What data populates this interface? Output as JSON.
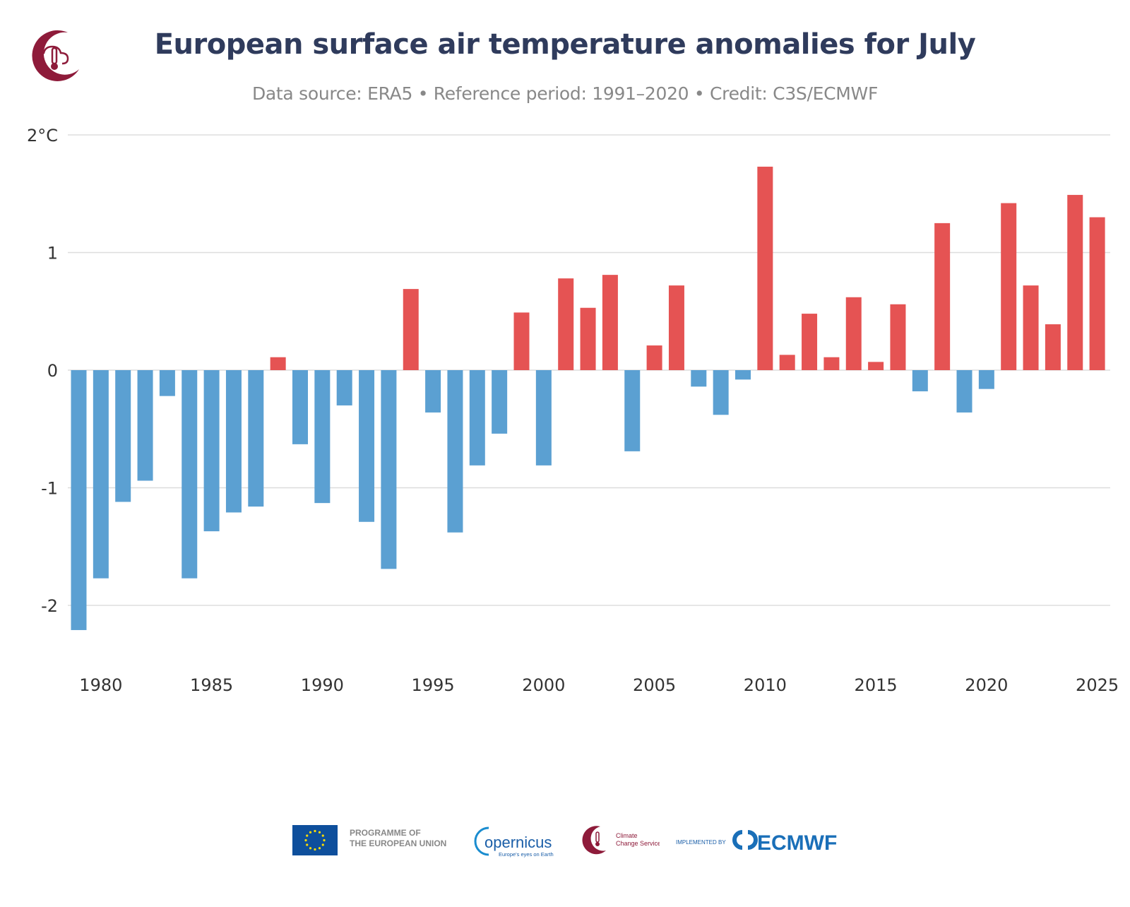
{
  "chart_data": {
    "type": "bar",
    "title": "European surface air temperature anomalies for July",
    "subtitle": "Data source: ERA5 • Reference period: 1991–2020 • Credit: C3S/ECMWF",
    "xlabel": "",
    "ylabel": "",
    "ylim": [
      -2.4,
      2.0
    ],
    "grid": true,
    "legend": "none",
    "y_ticks": [
      {
        "value": 2,
        "label": "2°C"
      },
      {
        "value": 1,
        "label": "1"
      },
      {
        "value": 0,
        "label": "0"
      },
      {
        "value": -1,
        "label": "-1"
      },
      {
        "value": -2,
        "label": "-2"
      }
    ],
    "x_ticks": [
      1980,
      1985,
      1990,
      1995,
      2000,
      2005,
      2010,
      2015,
      2020,
      2025
    ],
    "categories": [
      1979,
      1980,
      1981,
      1982,
      1983,
      1984,
      1985,
      1986,
      1987,
      1988,
      1989,
      1990,
      1991,
      1992,
      1993,
      1994,
      1995,
      1996,
      1997,
      1998,
      1999,
      2000,
      2001,
      2002,
      2003,
      2004,
      2005,
      2006,
      2007,
      2008,
      2009,
      2010,
      2011,
      2012,
      2013,
      2014,
      2015,
      2016,
      2017,
      2018,
      2019,
      2020,
      2021,
      2022,
      2023,
      2024,
      2025
    ],
    "values": [
      -2.21,
      -1.77,
      -1.12,
      -0.94,
      -0.22,
      -1.77,
      -1.37,
      -1.21,
      -1.16,
      0.11,
      -0.63,
      -1.13,
      -0.3,
      -1.29,
      -1.69,
      0.69,
      -0.36,
      -1.38,
      -0.81,
      -0.54,
      0.49,
      -0.81,
      0.78,
      0.53,
      0.81,
      -0.69,
      0.21,
      0.72,
      -0.14,
      -0.38,
      -0.08,
      1.73,
      0.13,
      0.48,
      0.11,
      0.62,
      0.07,
      0.56,
      -0.18,
      1.25,
      -0.36,
      -0.16,
      1.42,
      0.72,
      0.39,
      1.49,
      1.3
    ],
    "colors": {
      "positive": "#e55353",
      "negative": "#5ba0d2",
      "grid": "#dddddd",
      "tick_text": "#333333"
    }
  },
  "logos": {
    "eu_text_line1": "PROGRAMME OF",
    "eu_text_line2": "THE EUROPEAN UNION",
    "copernicus_word": "opernicus",
    "copernicus_tagline": "Europe's eyes on Earth",
    "c3s_line1": "Climate",
    "c3s_line2": "Change Service",
    "implemented_by": "IMPLEMENTED BY",
    "ecmwf": "ECMWF"
  }
}
